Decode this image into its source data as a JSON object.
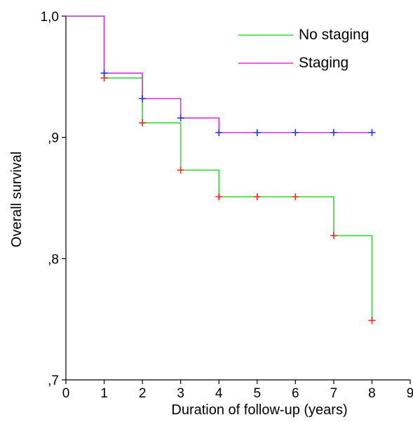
{
  "chart_data": {
    "type": "line",
    "subtype": "kaplan-meier-step",
    "title": "",
    "xlabel": "Duration of follow-up (years)",
    "ylabel": "Overall survival",
    "xlim": [
      0,
      9
    ],
    "ylim": [
      0.7,
      1.0
    ],
    "x_ticks": [
      0,
      1,
      2,
      3,
      4,
      5,
      6,
      7,
      8,
      9
    ],
    "x_tick_labels": [
      "0",
      "1",
      "2",
      "3",
      "4",
      "5",
      "6",
      "7",
      "8",
      "9"
    ],
    "y_ticks": [
      0.7,
      0.8,
      0.9,
      1.0
    ],
    "y_tick_labels": [
      ",7",
      ",8",
      ",9",
      "1,0"
    ],
    "grid": false,
    "legend_position": "top-right",
    "series": [
      {
        "name": "No staging",
        "color": "#33dd33",
        "censor_color": "#ff2222",
        "steps": [
          {
            "x": 0,
            "y": 1.0
          },
          {
            "x": 1,
            "y": 0.949
          },
          {
            "x": 2,
            "y": 0.912
          },
          {
            "x": 3,
            "y": 0.873
          },
          {
            "x": 4,
            "y": 0.851
          },
          {
            "x": 7,
            "y": 0.819
          },
          {
            "x": 8,
            "y": 0.749
          }
        ],
        "end_x": 8,
        "censored": [
          {
            "x": 1,
            "y": 0.949
          },
          {
            "x": 2,
            "y": 0.912
          },
          {
            "x": 3,
            "y": 0.873
          },
          {
            "x": 4,
            "y": 0.851
          },
          {
            "x": 5,
            "y": 0.851
          },
          {
            "x": 6,
            "y": 0.851
          },
          {
            "x": 7,
            "y": 0.819
          },
          {
            "x": 8,
            "y": 0.749
          }
        ]
      },
      {
        "name": "Staging",
        "color": "#dd33dd",
        "censor_color": "#2233ee",
        "steps": [
          {
            "x": 0,
            "y": 1.0
          },
          {
            "x": 1,
            "y": 0.953
          },
          {
            "x": 2,
            "y": 0.932
          },
          {
            "x": 3,
            "y": 0.916
          },
          {
            "x": 4,
            "y": 0.904
          }
        ],
        "end_x": 8,
        "censored": [
          {
            "x": 1,
            "y": 0.953
          },
          {
            "x": 2,
            "y": 0.932
          },
          {
            "x": 3,
            "y": 0.916
          },
          {
            "x": 4,
            "y": 0.904
          },
          {
            "x": 5,
            "y": 0.904
          },
          {
            "x": 6,
            "y": 0.904
          },
          {
            "x": 7,
            "y": 0.904
          },
          {
            "x": 8,
            "y": 0.904
          }
        ]
      }
    ]
  }
}
